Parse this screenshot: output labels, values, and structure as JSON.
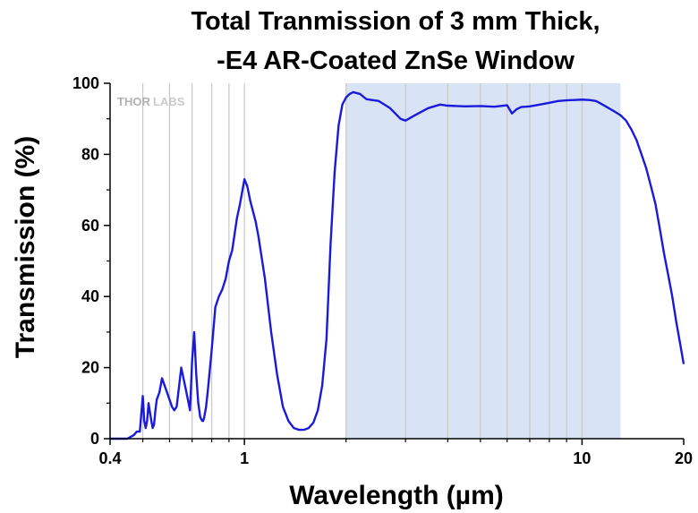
{
  "chart_data": {
    "type": "line",
    "title_line1": "Total Tranmission of 3 mm Thick,",
    "title_line2": "-E4 AR-Coated ZnSe Window",
    "xlabel": "Wavelength (µm)",
    "ylabel": "Transmission (%)",
    "x_scale": "log",
    "xlim": [
      0.4,
      20
    ],
    "ylim": [
      0,
      100
    ],
    "x_ticks": [
      {
        "value": 0.4,
        "label": "0.4"
      },
      {
        "value": 1,
        "label": "1"
      },
      {
        "value": 10,
        "label": "10"
      },
      {
        "value": 20,
        "label": "20"
      }
    ],
    "y_ticks": [
      {
        "value": 0,
        "label": "0"
      },
      {
        "value": 20,
        "label": "20"
      },
      {
        "value": 40,
        "label": "40"
      },
      {
        "value": 60,
        "label": "60"
      },
      {
        "value": 80,
        "label": "80"
      },
      {
        "value": 100,
        "label": "100"
      }
    ],
    "grid": "vertical minor lines on log x-axis",
    "highlight_band": {
      "x_start": 2,
      "x_end": 13,
      "color": "#d9e3f6"
    },
    "line_color": "#1a1adb",
    "logo_text": {
      "left": "THOR",
      "right": "LABS"
    },
    "series": [
      {
        "x": [
          0.4,
          0.45,
          0.47,
          0.48,
          0.49,
          0.5,
          0.505,
          0.51,
          0.515,
          0.52,
          0.53,
          0.535,
          0.54,
          0.545,
          0.55,
          0.56,
          0.57,
          0.58,
          0.6,
          0.61,
          0.62,
          0.63,
          0.65,
          0.67,
          0.69,
          0.7,
          0.71,
          0.72,
          0.73,
          0.74,
          0.75,
          0.755,
          0.76,
          0.77,
          0.78,
          0.8,
          0.82,
          0.84,
          0.86,
          0.88,
          0.9,
          0.92,
          0.95,
          0.97,
          1.0,
          1.02,
          1.04,
          1.06,
          1.08,
          1.1,
          1.15,
          1.2,
          1.25,
          1.3,
          1.35,
          1.4,
          1.45,
          1.5,
          1.55,
          1.6,
          1.65,
          1.7,
          1.75,
          1.8,
          1.85,
          1.9,
          1.95,
          2.0,
          2.05,
          2.1,
          2.2,
          2.3,
          2.5,
          2.7,
          2.9,
          3.0,
          3.2,
          3.5,
          3.8,
          4,
          4.5,
          5,
          5.5,
          6,
          6.2,
          6.4,
          6.6,
          7,
          7.5,
          8,
          8.5,
          9,
          9.5,
          10,
          10.5,
          11,
          11.5,
          12,
          12.5,
          13,
          13.5,
          14,
          14.5,
          15,
          15.5,
          16,
          16.5,
          17,
          17.5,
          18,
          18.5,
          19,
          19.5,
          20
        ],
        "y": [
          0,
          0,
          1,
          2,
          2,
          12,
          5,
          3,
          5,
          10,
          5,
          3,
          4,
          8,
          11,
          13,
          17,
          15,
          11,
          9,
          8,
          9,
          20,
          14,
          8,
          22,
          30,
          18,
          10,
          6,
          5,
          5,
          6,
          9,
          14,
          25,
          37,
          40,
          42,
          45,
          50,
          53,
          62,
          66,
          73,
          71,
          67,
          64,
          61,
          57,
          45,
          30,
          18,
          9,
          5,
          3,
          2.5,
          2.5,
          3,
          4.5,
          8,
          15,
          28,
          55,
          75,
          88,
          94,
          96,
          97,
          97.5,
          97,
          95.5,
          95,
          93,
          90,
          89.5,
          91,
          93,
          94,
          93.7,
          93.5,
          93.6,
          93.4,
          93.8,
          91.5,
          92.7,
          93.3,
          93.5,
          94,
          94.5,
          95,
          95.2,
          95.3,
          95.4,
          95.3,
          95,
          94,
          93,
          92,
          91,
          89.5,
          87,
          84,
          80,
          76,
          71,
          66,
          59,
          52,
          46,
          40,
          33,
          27,
          21
        ]
      }
    ]
  }
}
